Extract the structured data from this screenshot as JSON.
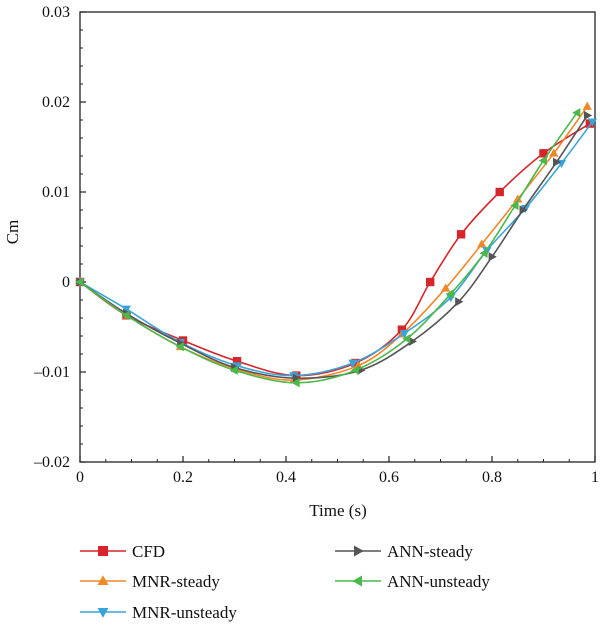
{
  "chart_data": {
    "type": "line",
    "xlabel": "Time (s)",
    "ylabel": "Cm",
    "xlim": [
      0,
      1
    ],
    "ylim": [
      -0.02,
      0.03
    ],
    "x_ticks": [
      0,
      0.2,
      0.4,
      0.6,
      0.8,
      1
    ],
    "x_tick_labels": [
      "0",
      "0.2",
      "0.4",
      "0.6",
      "0.8",
      "1"
    ],
    "y_ticks": [
      -0.02,
      -0.01,
      0,
      0.01,
      0.02,
      0.03
    ],
    "y_tick_labels": [
      "–0.02",
      "–0.01",
      "0",
      "0.01",
      "0.02",
      "0.03"
    ],
    "grid": false,
    "legend_position": "bottom",
    "series": [
      {
        "name": "CFD",
        "color": "#d7262b",
        "marker": "square",
        "x": [
          0,
          0.09,
          0.2,
          0.305,
          0.42,
          0.535,
          0.625,
          0.68,
          0.74,
          0.815,
          0.9,
          0.99
        ],
        "y": [
          0,
          -0.0037,
          -0.0065,
          -0.0088,
          -0.0104,
          -0.009,
          -0.0053,
          0.0,
          0.0053,
          0.01,
          0.0143,
          0.0176
        ]
      },
      {
        "name": "MNR-steady",
        "color": "#f0882a",
        "marker": "triangle-up",
        "x": [
          0,
          0.09,
          0.195,
          0.305,
          0.415,
          0.54,
          0.625,
          0.71,
          0.78,
          0.85,
          0.92,
          0.985
        ],
        "y": [
          0,
          -0.0037,
          -0.0072,
          -0.0097,
          -0.0109,
          -0.0093,
          -0.0058,
          -0.0007,
          0.0042,
          0.0092,
          0.0143,
          0.0195
        ]
      },
      {
        "name": "MNR-unsteady",
        "color": "#3aa4d9",
        "marker": "triangle-down",
        "x": [
          0,
          0.09,
          0.195,
          0.305,
          0.415,
          0.53,
          0.63,
          0.72,
          0.79,
          0.865,
          0.935,
          0.995
        ],
        "y": [
          0,
          -0.003,
          -0.0067,
          -0.0093,
          -0.0104,
          -0.009,
          -0.0057,
          -0.0017,
          0.0035,
          0.0082,
          0.0132,
          0.0178
        ]
      },
      {
        "name": "ANN-steady",
        "color": "#555555",
        "marker": "triangle-right",
        "x": [
          0,
          0.09,
          0.195,
          0.3,
          0.42,
          0.545,
          0.645,
          0.735,
          0.8,
          0.86,
          0.925,
          0.985
        ],
        "y": [
          0,
          -0.0035,
          -0.0068,
          -0.0095,
          -0.0107,
          -0.0098,
          -0.0066,
          -0.0022,
          0.0028,
          0.008,
          0.0133,
          0.0185
        ]
      },
      {
        "name": "ANN-unsteady",
        "color": "#4cb84c",
        "marker": "triangle-left",
        "x": [
          0,
          0.09,
          0.195,
          0.3,
          0.42,
          0.535,
          0.635,
          0.72,
          0.785,
          0.845,
          0.9,
          0.965
        ],
        "y": [
          0,
          -0.0037,
          -0.0072,
          -0.0098,
          -0.0112,
          -0.0098,
          -0.0063,
          -0.0013,
          0.0032,
          0.0085,
          0.0135,
          0.0188
        ]
      }
    ]
  }
}
